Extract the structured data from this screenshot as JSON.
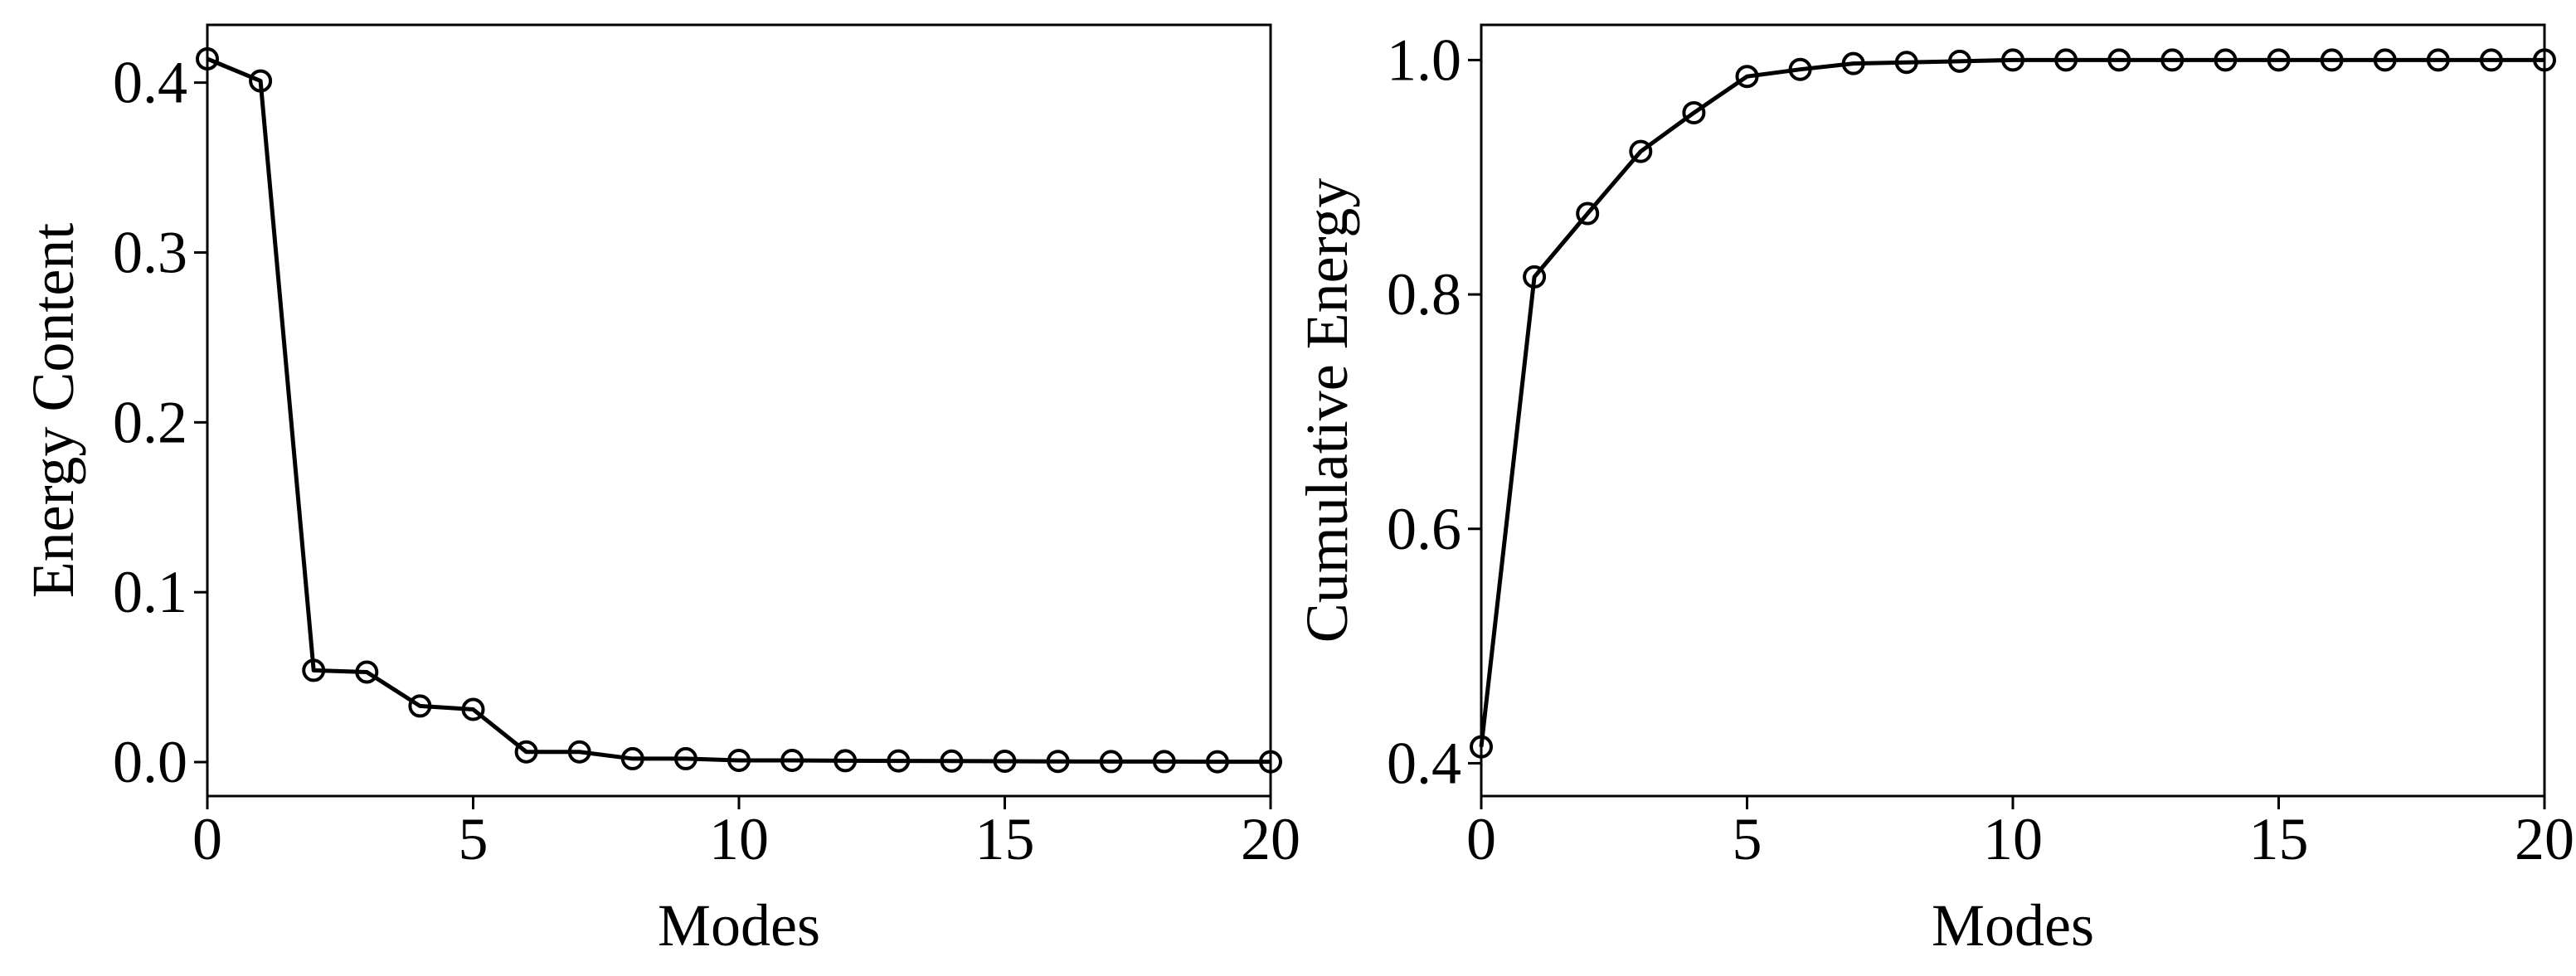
{
  "chart_data": [
    {
      "type": "line",
      "x_label": "Modes",
      "y_label": "Energy Content",
      "x": [
        0,
        1,
        2,
        3,
        4,
        5,
        6,
        7,
        8,
        9,
        10,
        11,
        12,
        13,
        14,
        15,
        16,
        17,
        18,
        19,
        20
      ],
      "values": [
        0.414,
        0.401,
        0.054,
        0.053,
        0.033,
        0.031,
        0.006,
        0.006,
        0.002,
        0.002,
        0.001,
        0.001,
        0.0008,
        0.0007,
        0.0006,
        0.0005,
        0.0004,
        0.0003,
        0.0003,
        0.0002,
        0.0002
      ],
      "color": "#000000",
      "xlim": [
        0,
        20
      ],
      "xticks": [
        0,
        5,
        10,
        15,
        20
      ],
      "ylim": [
        -0.02,
        0.434
      ],
      "yticks": [
        {
          "value": 0,
          "label": "0.0"
        },
        0.1,
        0.2,
        0.3,
        0.4
      ]
    },
    {
      "type": "line",
      "x_label": "Modes",
      "y_label": "Cumulative Energy",
      "x": [
        0,
        1,
        2,
        3,
        4,
        5,
        6,
        7,
        8,
        9,
        10,
        11,
        12,
        13,
        14,
        15,
        16,
        17,
        18,
        19,
        20
      ],
      "values": [
        0.414,
        0.815,
        0.869,
        0.922,
        0.955,
        0.986,
        0.992,
        0.997,
        0.998,
        0.999,
        1.0,
        1.0,
        1.0,
        1.0,
        1.0,
        1.0,
        1.0,
        1.0,
        1.0,
        1.0,
        1.0
      ],
      "color": "#000000",
      "xlim": [
        0,
        20
      ],
      "xticks": [
        0,
        5,
        10,
        15,
        20
      ],
      "ylim": [
        0.372,
        1.03
      ],
      "yticks": [
        0.4,
        0.6,
        0.8,
        {
          "value": 1,
          "label": "1.0"
        }
      ]
    }
  ]
}
